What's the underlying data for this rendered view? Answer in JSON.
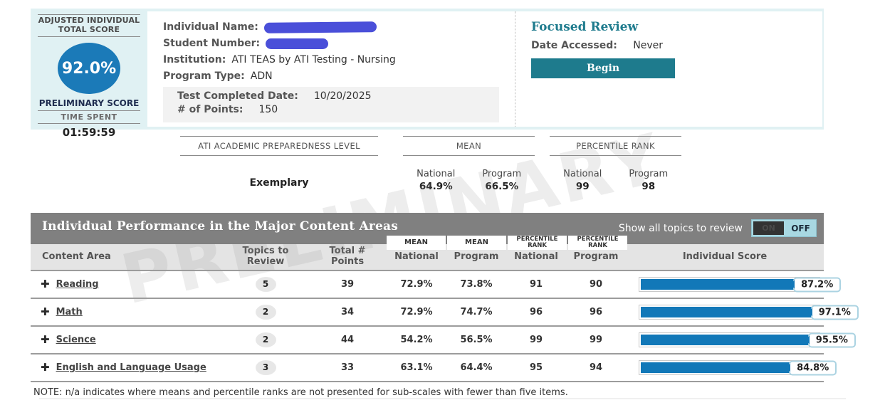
{
  "colors": {
    "band_bg": "#e0f1f3",
    "accent_blue": "#1b7ab8",
    "teal": "#1e7b8d",
    "bar_blue": "#1278b8",
    "gray_bar": "#808080",
    "header_row": "#e4e4e4",
    "callout_border": "#abd3e2",
    "redaction": "#4a4fd9",
    "toggle_bg": "#a8d8e2",
    "badge_bg": "#e7e7e7",
    "dark_navy": "#1f2d50"
  },
  "header": {
    "score_box": {
      "title": "ADJUSTED INDIVIDUAL TOTAL SCORE",
      "score": "92.0%",
      "score_label": "PRELIMINARY SCORE",
      "time_label": "TIME SPENT",
      "time_value": "01:59:59"
    },
    "info": {
      "name_label": "Individual Name:",
      "name_redacted": true,
      "student_label": "Student Number:",
      "student_redacted": true,
      "institution_label": "Institution:",
      "institution_value": "ATI TEAS by ATI Testing - Nursing",
      "program_label": "Program Type:",
      "program_value": "ADN",
      "completed_label": "Test Completed Date:",
      "completed_value": "10/20/2025",
      "points_label": "# of Points:",
      "points_value": "150"
    },
    "focused_review": {
      "title": "Focused Review",
      "date_label": "Date Accessed:",
      "date_value": "Never",
      "begin_label": "Begin"
    }
  },
  "summary": {
    "groups": [
      {
        "header": "ATI ACADEMIC PREPAREDNESS LEVEL",
        "values": [
          {
            "label": "",
            "value": "Exemplary"
          }
        ]
      },
      {
        "header": "MEAN",
        "values": [
          {
            "label": "National",
            "value": "64.9%"
          },
          {
            "label": "Program",
            "value": "66.5%"
          }
        ]
      },
      {
        "header": "PERCENTILE RANK",
        "values": [
          {
            "label": "National",
            "value": "99"
          },
          {
            "label": "Program",
            "value": "98"
          }
        ]
      }
    ]
  },
  "table": {
    "title": "Individual Performance in the Major Content Areas",
    "toggle": {
      "label": "Show all topics to review",
      "on_label": "ON",
      "off_label": "OFF",
      "state": "OFF"
    },
    "group_boxes": [
      "MEAN",
      "MEAN",
      "PERCENTILE RANK",
      "PERCENTILE RANK"
    ],
    "columns": [
      "Content Area",
      "Topics to Review",
      "Total # Points",
      "National",
      "Program",
      "National",
      "Program",
      "Individual Score"
    ],
    "rows": [
      {
        "name": "Reading",
        "topics": "5",
        "points": "39",
        "mean_national": "72.9%",
        "mean_program": "73.8%",
        "pr_national": "91",
        "pr_program": "90",
        "score": "87.2%",
        "score_value": 87.2
      },
      {
        "name": "Math",
        "topics": "2",
        "points": "34",
        "mean_national": "72.9%",
        "mean_program": "74.7%",
        "pr_national": "96",
        "pr_program": "96",
        "score": "97.1%",
        "score_value": 97.1
      },
      {
        "name": "Science",
        "topics": "2",
        "points": "44",
        "mean_national": "54.2%",
        "mean_program": "56.5%",
        "pr_national": "99",
        "pr_program": "99",
        "score": "95.5%",
        "score_value": 95.5
      },
      {
        "name": "English and Language Usage",
        "topics": "3",
        "points": "33",
        "mean_national": "63.1%",
        "mean_program": "64.4%",
        "pr_national": "95",
        "pr_program": "94",
        "score": "84.8%",
        "score_value": 84.8
      }
    ],
    "note": "NOTE: n/a indicates where means and percentile ranks are not presented for sub-scales with fewer than five items.",
    "watermark": "PRELIMINARY"
  }
}
